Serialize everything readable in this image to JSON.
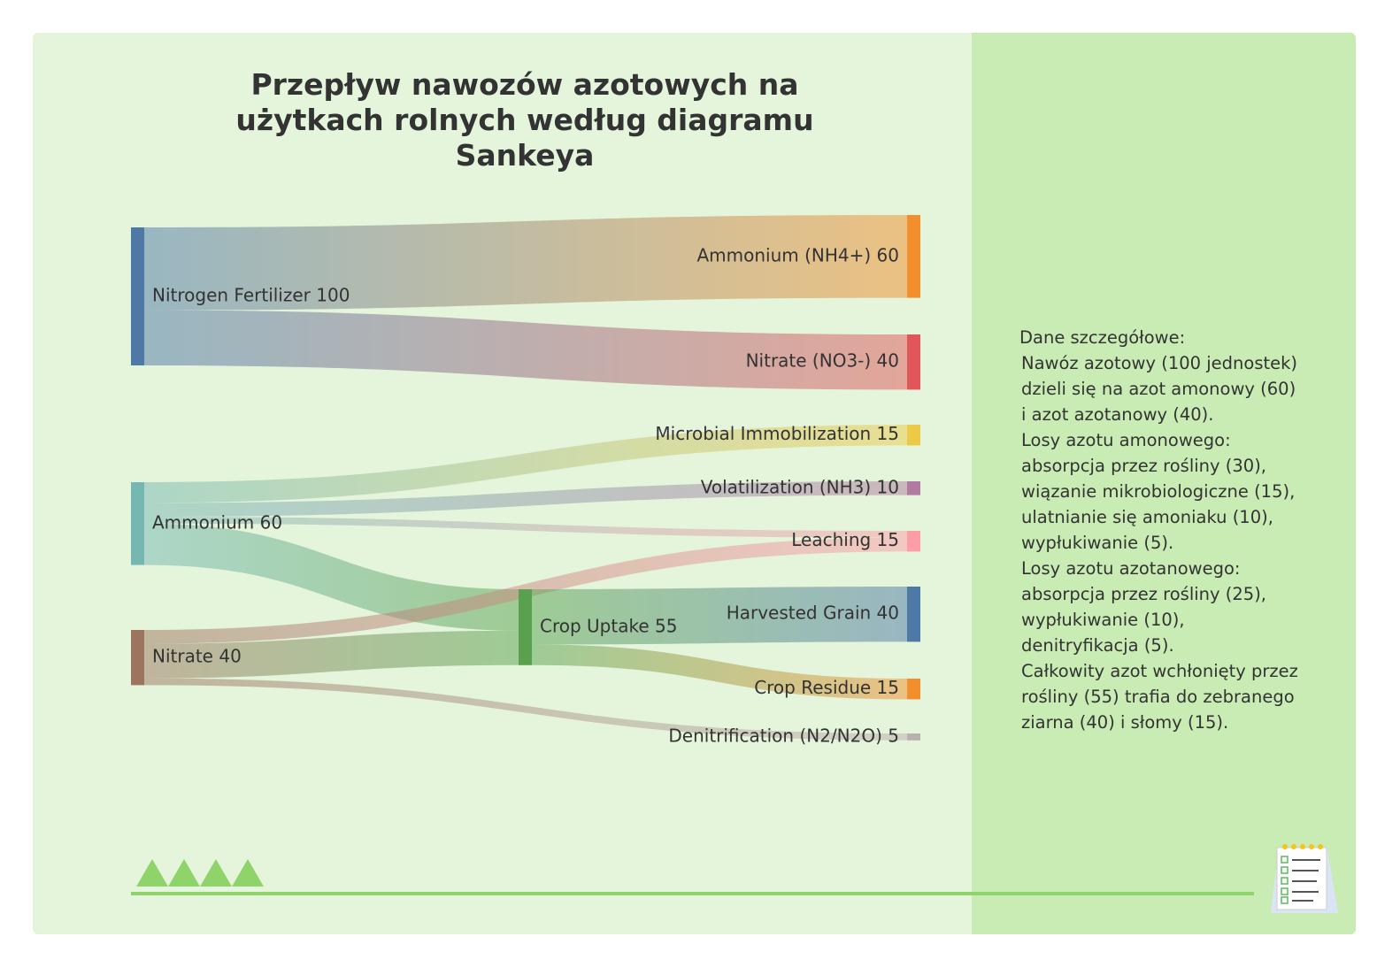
{
  "chart_data": {
    "type": "sankey",
    "title": "Przepływ nawozów azotowych na użytkach rolnych według diagramu Sankeya",
    "nodes": [
      {
        "label": "Nitrogen Fertilizer 100",
        "color": "#4e79a7"
      },
      {
        "label": "Ammonium (NH4+) 60",
        "color": "#f28e2b"
      },
      {
        "label": "Nitrate (NO3-) 40",
        "color": "#e15759"
      },
      {
        "label": "Ammonium 60",
        "color": "#76b7b2"
      },
      {
        "label": "Nitrate 40",
        "color": "#9c755f"
      },
      {
        "label": "Crop Uptake 55",
        "color": "#59a14f"
      },
      {
        "label": "Microbial Immobilization 15",
        "color": "#edc948"
      },
      {
        "label": "Volatilization (NH3) 10",
        "color": "#b07aa1"
      },
      {
        "label": "Leaching 15",
        "color": "#ff9da7"
      },
      {
        "label": "Harvested Grain 40",
        "color": "#4e79a7"
      },
      {
        "label": "Crop Residue 15",
        "color": "#f28e2b"
      },
      {
        "label": "Denitrification (N2/N2O) 5",
        "color": "#bab0ac"
      }
    ],
    "links": [
      {
        "source": 0,
        "target": 1,
        "value": 60
      },
      {
        "source": 0,
        "target": 2,
        "value": 40
      },
      {
        "source": 3,
        "target": 6,
        "value": 15
      },
      {
        "source": 3,
        "target": 7,
        "value": 10
      },
      {
        "source": 3,
        "target": 8,
        "value": 5
      },
      {
        "source": 3,
        "target": 5,
        "value": 30
      },
      {
        "source": 4,
        "target": 8,
        "value": 10
      },
      {
        "source": 4,
        "target": 5,
        "value": 25
      },
      {
        "source": 4,
        "target": 11,
        "value": 5
      },
      {
        "source": 5,
        "target": 9,
        "value": 40
      },
      {
        "source": 5,
        "target": 10,
        "value": 15
      }
    ],
    "notes": [
      "Dane szczegółowe:",
      "Nawóz azotowy (100 jednostek)",
      "dzieli się na azot amonowy (60)",
      "i azot azotanowy (40).",
      "Losy azotu amonowego:",
      "absorpcja przez rośliny (30),",
      "wiązanie mikrobiologiczne (15),",
      "ulatnianie się amoniaku (10),",
      "wypłukiwanie (5).",
      "Losy azotu azotanowego:",
      "absorpcja przez rośliny (25),",
      "wypłukiwanie (10),",
      "denitryfikacja (5).",
      "Całkowity azot wchłonięty przez",
      "rośliny (55) trafia do zebranego",
      "ziarna (40) i słomy (15)."
    ]
  }
}
